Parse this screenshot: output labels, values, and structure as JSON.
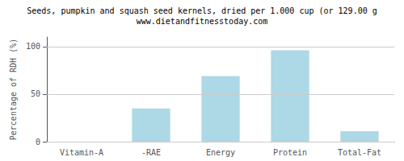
{
  "chart_data": {
    "type": "bar",
    "title": "Seeds, pumpkin and squash seed kernels, dried per 1.000 cup (or 129.00 g",
    "subtitle": "www.dietandfitnesstoday.com",
    "ylabel": "Percentage of RDH (%)",
    "categories": [
      "Vitamin-A",
      "-RAE",
      "Energy",
      "Protein",
      "Total-Fat"
    ],
    "values": [
      0,
      35,
      69,
      96,
      11
    ],
    "color": "#add8e6",
    "ylim": [
      0,
      110
    ],
    "yticks": [
      0,
      50,
      100
    ],
    "grid": true
  }
}
